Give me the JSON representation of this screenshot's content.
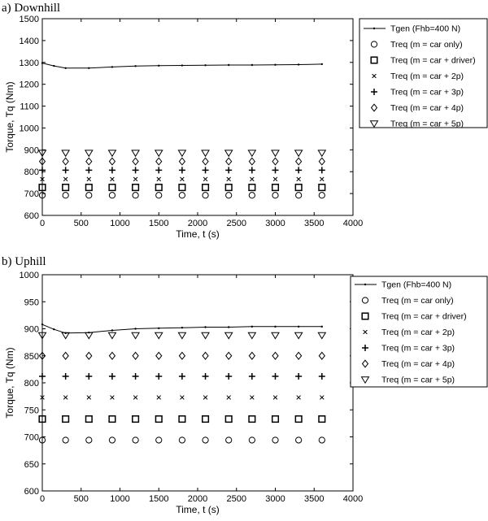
{
  "chart_data": [
    {
      "panel": "a) Downhill",
      "type": "line+scatter",
      "xlabel": "Time, t (s)",
      "ylabel": "Torque, Tq (Nm)",
      "xlim": [
        0,
        4000
      ],
      "ylim": [
        600,
        1500
      ],
      "xticks": [
        0,
        500,
        1000,
        1500,
        2000,
        2500,
        3000,
        3500,
        4000
      ],
      "yticks": [
        600,
        700,
        800,
        900,
        1000,
        1100,
        1200,
        1300,
        1400,
        1500
      ],
      "grid": false,
      "legend_position": "right",
      "line_series": {
        "name": "Tgen (Fhb=400 N)",
        "x": [
          0,
          150,
          300,
          600,
          900,
          1200,
          1500,
          1800,
          2100,
          2400,
          2700,
          3000,
          3300,
          3600
        ],
        "y": [
          1297,
          1284,
          1274,
          1274,
          1279,
          1283,
          1285,
          1286,
          1287,
          1288,
          1288,
          1289,
          1290,
          1292
        ]
      },
      "marker_x": [
        0,
        300,
        600,
        900,
        1200,
        1500,
        1800,
        2100,
        2400,
        2700,
        3000,
        3300,
        3600
      ],
      "marker_series": [
        {
          "name": "Treq (m = car only)",
          "marker": "circle",
          "y": 692
        },
        {
          "name": "Treq (m = car + driver)",
          "marker": "square",
          "y": 728
        },
        {
          "name": "Treq (m = car + 2p)",
          "marker": "x",
          "y": 766
        },
        {
          "name": "Treq (m = car + 3p)",
          "marker": "plus",
          "y": 807
        },
        {
          "name": "Treq (m = car + 4p)",
          "marker": "diamond",
          "y": 847
        },
        {
          "name": "Treq (m = car + 5p)",
          "marker": "triangle-down",
          "y": 886
        }
      ]
    },
    {
      "panel": "b) Uphill",
      "type": "line+scatter",
      "xlabel": "Time, t (s)",
      "ylabel": "Torque, Tq (Nm)",
      "xlim": [
        0,
        4000
      ],
      "ylim": [
        600,
        1000
      ],
      "xticks": [
        0,
        500,
        1000,
        1500,
        2000,
        2500,
        3000,
        3500,
        4000
      ],
      "yticks": [
        600,
        650,
        700,
        750,
        800,
        850,
        900,
        950,
        1000
      ],
      "grid": false,
      "legend_position": "right",
      "line_series": {
        "name": "Tgen (Fhb=400 N)",
        "x": [
          0,
          150,
          300,
          600,
          900,
          1200,
          1500,
          1800,
          2100,
          2400,
          2700,
          3000,
          3300,
          3600
        ],
        "y": [
          908,
          899,
          892,
          893,
          897,
          900,
          901,
          902,
          903,
          903,
          904,
          904,
          904,
          904
        ]
      },
      "marker_x": [
        0,
        300,
        600,
        900,
        1200,
        1500,
        1800,
        2100,
        2400,
        2700,
        3000,
        3300,
        3600
      ],
      "marker_series": [
        {
          "name": "Treq (m = car only)",
          "marker": "circle",
          "y": 694
        },
        {
          "name": "Treq (m = car + driver)",
          "marker": "square",
          "y": 733
        },
        {
          "name": "Treq (m = car + 2p)",
          "marker": "x",
          "y": 773
        },
        {
          "name": "Treq (m = car + 3p)",
          "marker": "plus",
          "y": 812
        },
        {
          "name": "Treq (m = car + 4p)",
          "marker": "diamond",
          "y": 850
        },
        {
          "name": "Treq (m = car + 5p)",
          "marker": "triangle-down",
          "y": 888
        }
      ]
    }
  ]
}
